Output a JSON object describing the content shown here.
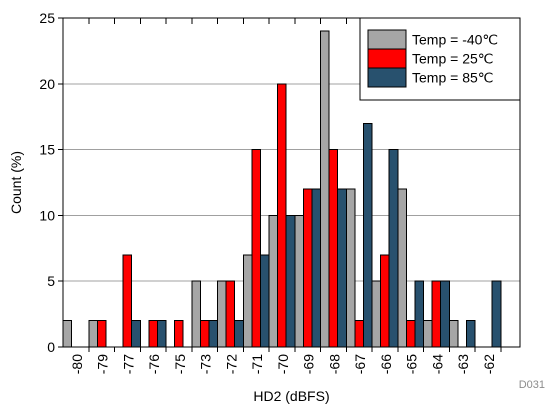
{
  "chart_data": {
    "type": "bar",
    "xlabel": "HD2 (dBFS)",
    "ylabel": "Count (%)",
    "categories": [
      "-80",
      "-79",
      "-77",
      "-76",
      "-75",
      "-73",
      "-72",
      "-71",
      "-70",
      "-69",
      "-68",
      "-67",
      "-66",
      "-65",
      "-64",
      "-63",
      "-62"
    ],
    "series": [
      {
        "name": "Temp = -40℃",
        "color": "#a6a6a6",
        "values": [
          2,
          2,
          0,
          0,
          0,
          5,
          5,
          7,
          10,
          10,
          24,
          12,
          5,
          12,
          2,
          2,
          0
        ]
      },
      {
        "name": "Temp = 25℃",
        "color": "#ff0000",
        "values": [
          0,
          2,
          7,
          2,
          2,
          2,
          5,
          15,
          20,
          12,
          15,
          2,
          7,
          2,
          5,
          0,
          0
        ]
      },
      {
        "name": "Temp = 85℃",
        "color": "#28516e",
        "values": [
          0,
          0,
          2,
          2,
          0,
          2,
          2,
          7,
          10,
          12,
          12,
          17,
          15,
          5,
          5,
          2,
          5
        ]
      }
    ],
    "ylim": [
      0,
      25
    ],
    "yticks": [
      0,
      5,
      10,
      15,
      20,
      25
    ],
    "grid": true,
    "legend": "top-right"
  },
  "figure_id": "D031"
}
